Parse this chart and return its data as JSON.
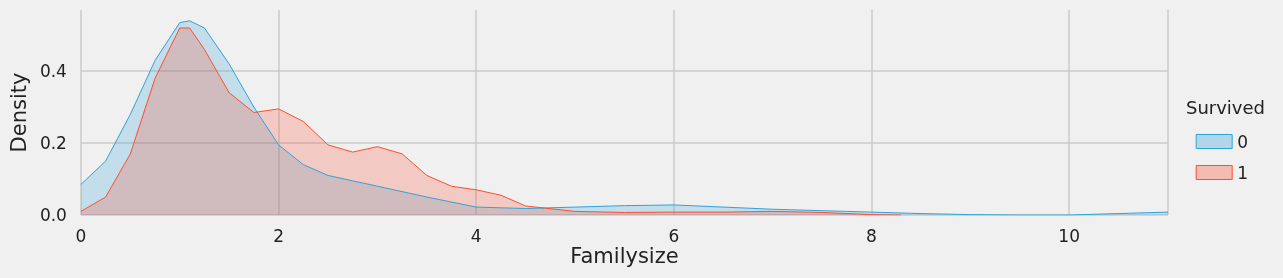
{
  "chart_data": {
    "type": "area",
    "xlabel": "Familysize",
    "ylabel": "Density",
    "legend_title": "Survived",
    "legend": "right",
    "grid": true,
    "xlim": [
      0,
      11
    ],
    "xticks": [
      0,
      2,
      4,
      6,
      8,
      10
    ],
    "ylim": [
      0,
      0.57
    ],
    "yticks": [
      {
        "value": 0,
        "label": "0.0"
      },
      {
        "value": 0.2,
        "label": "0.2"
      },
      {
        "value": 0.4,
        "label": "0.4"
      }
    ],
    "series": [
      {
        "name": "0",
        "color": "#30a2da",
        "x": [
          0,
          0.25,
          0.5,
          0.75,
          1,
          1.1,
          1.25,
          1.5,
          1.75,
          2,
          2.25,
          2.5,
          2.75,
          3,
          3.5,
          4,
          4.5,
          5,
          5.5,
          6,
          6.5,
          7,
          7.5,
          8,
          8.5,
          9,
          9.5,
          10,
          10.5,
          11
        ],
        "values": [
          0.085,
          0.15,
          0.28,
          0.43,
          0.535,
          0.54,
          0.52,
          0.42,
          0.3,
          0.195,
          0.14,
          0.11,
          0.095,
          0.08,
          0.05,
          0.022,
          0.018,
          0.022,
          0.026,
          0.028,
          0.022,
          0.016,
          0.012,
          0.008,
          0.004,
          0.001,
          0,
          0,
          0.004,
          0.008
        ]
      },
      {
        "name": "1",
        "color": "#fc4f30",
        "x": [
          0,
          0.25,
          0.5,
          0.75,
          1,
          1.1,
          1.25,
          1.5,
          1.75,
          2,
          2.25,
          2.5,
          2.75,
          3,
          3.25,
          3.5,
          3.75,
          4,
          4.25,
          4.5,
          5,
          5.5,
          6,
          6.5,
          7,
          7.5,
          8,
          8.3
        ],
        "values": [
          0.01,
          0.05,
          0.17,
          0.38,
          0.52,
          0.52,
          0.46,
          0.34,
          0.285,
          0.295,
          0.26,
          0.195,
          0.175,
          0.19,
          0.17,
          0.11,
          0.08,
          0.07,
          0.055,
          0.025,
          0.01,
          0.007,
          0.008,
          0.008,
          0.01,
          0.007,
          0.001,
          0
        ]
      }
    ]
  }
}
